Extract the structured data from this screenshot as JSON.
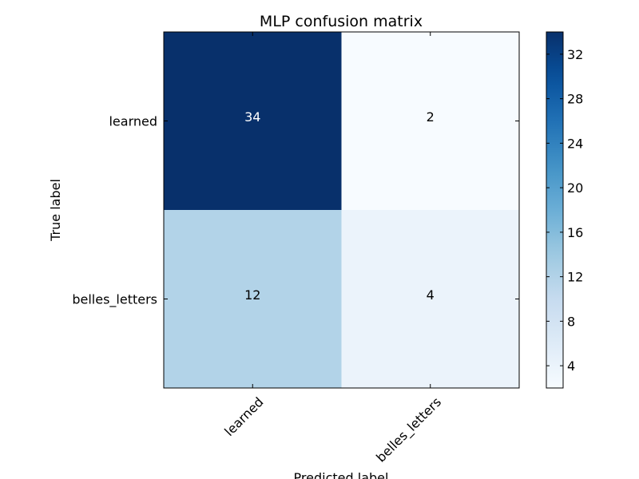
{
  "chart_data": {
    "type": "heatmap",
    "title": "MLP confusion matrix",
    "xlabel": "Predicted label",
    "ylabel": "True label",
    "x_categories": [
      "learned",
      "belles_letters"
    ],
    "y_categories": [
      "learned",
      "belles_letters"
    ],
    "values": [
      [
        34,
        2
      ],
      [
        12,
        4
      ]
    ],
    "colormap": "Blues",
    "colorbar": {
      "min": 2,
      "max": 34,
      "ticks": [
        4,
        8,
        12,
        16,
        20,
        24,
        28,
        32
      ],
      "tick_labels": [
        "4",
        "8",
        "12",
        "16",
        "20",
        "24",
        "28",
        "32"
      ]
    },
    "grid": false,
    "colors": {
      "low": "#f7fbff",
      "high": "#08306b",
      "text_dark": "#000000",
      "text_light": "#ffffff"
    }
  }
}
